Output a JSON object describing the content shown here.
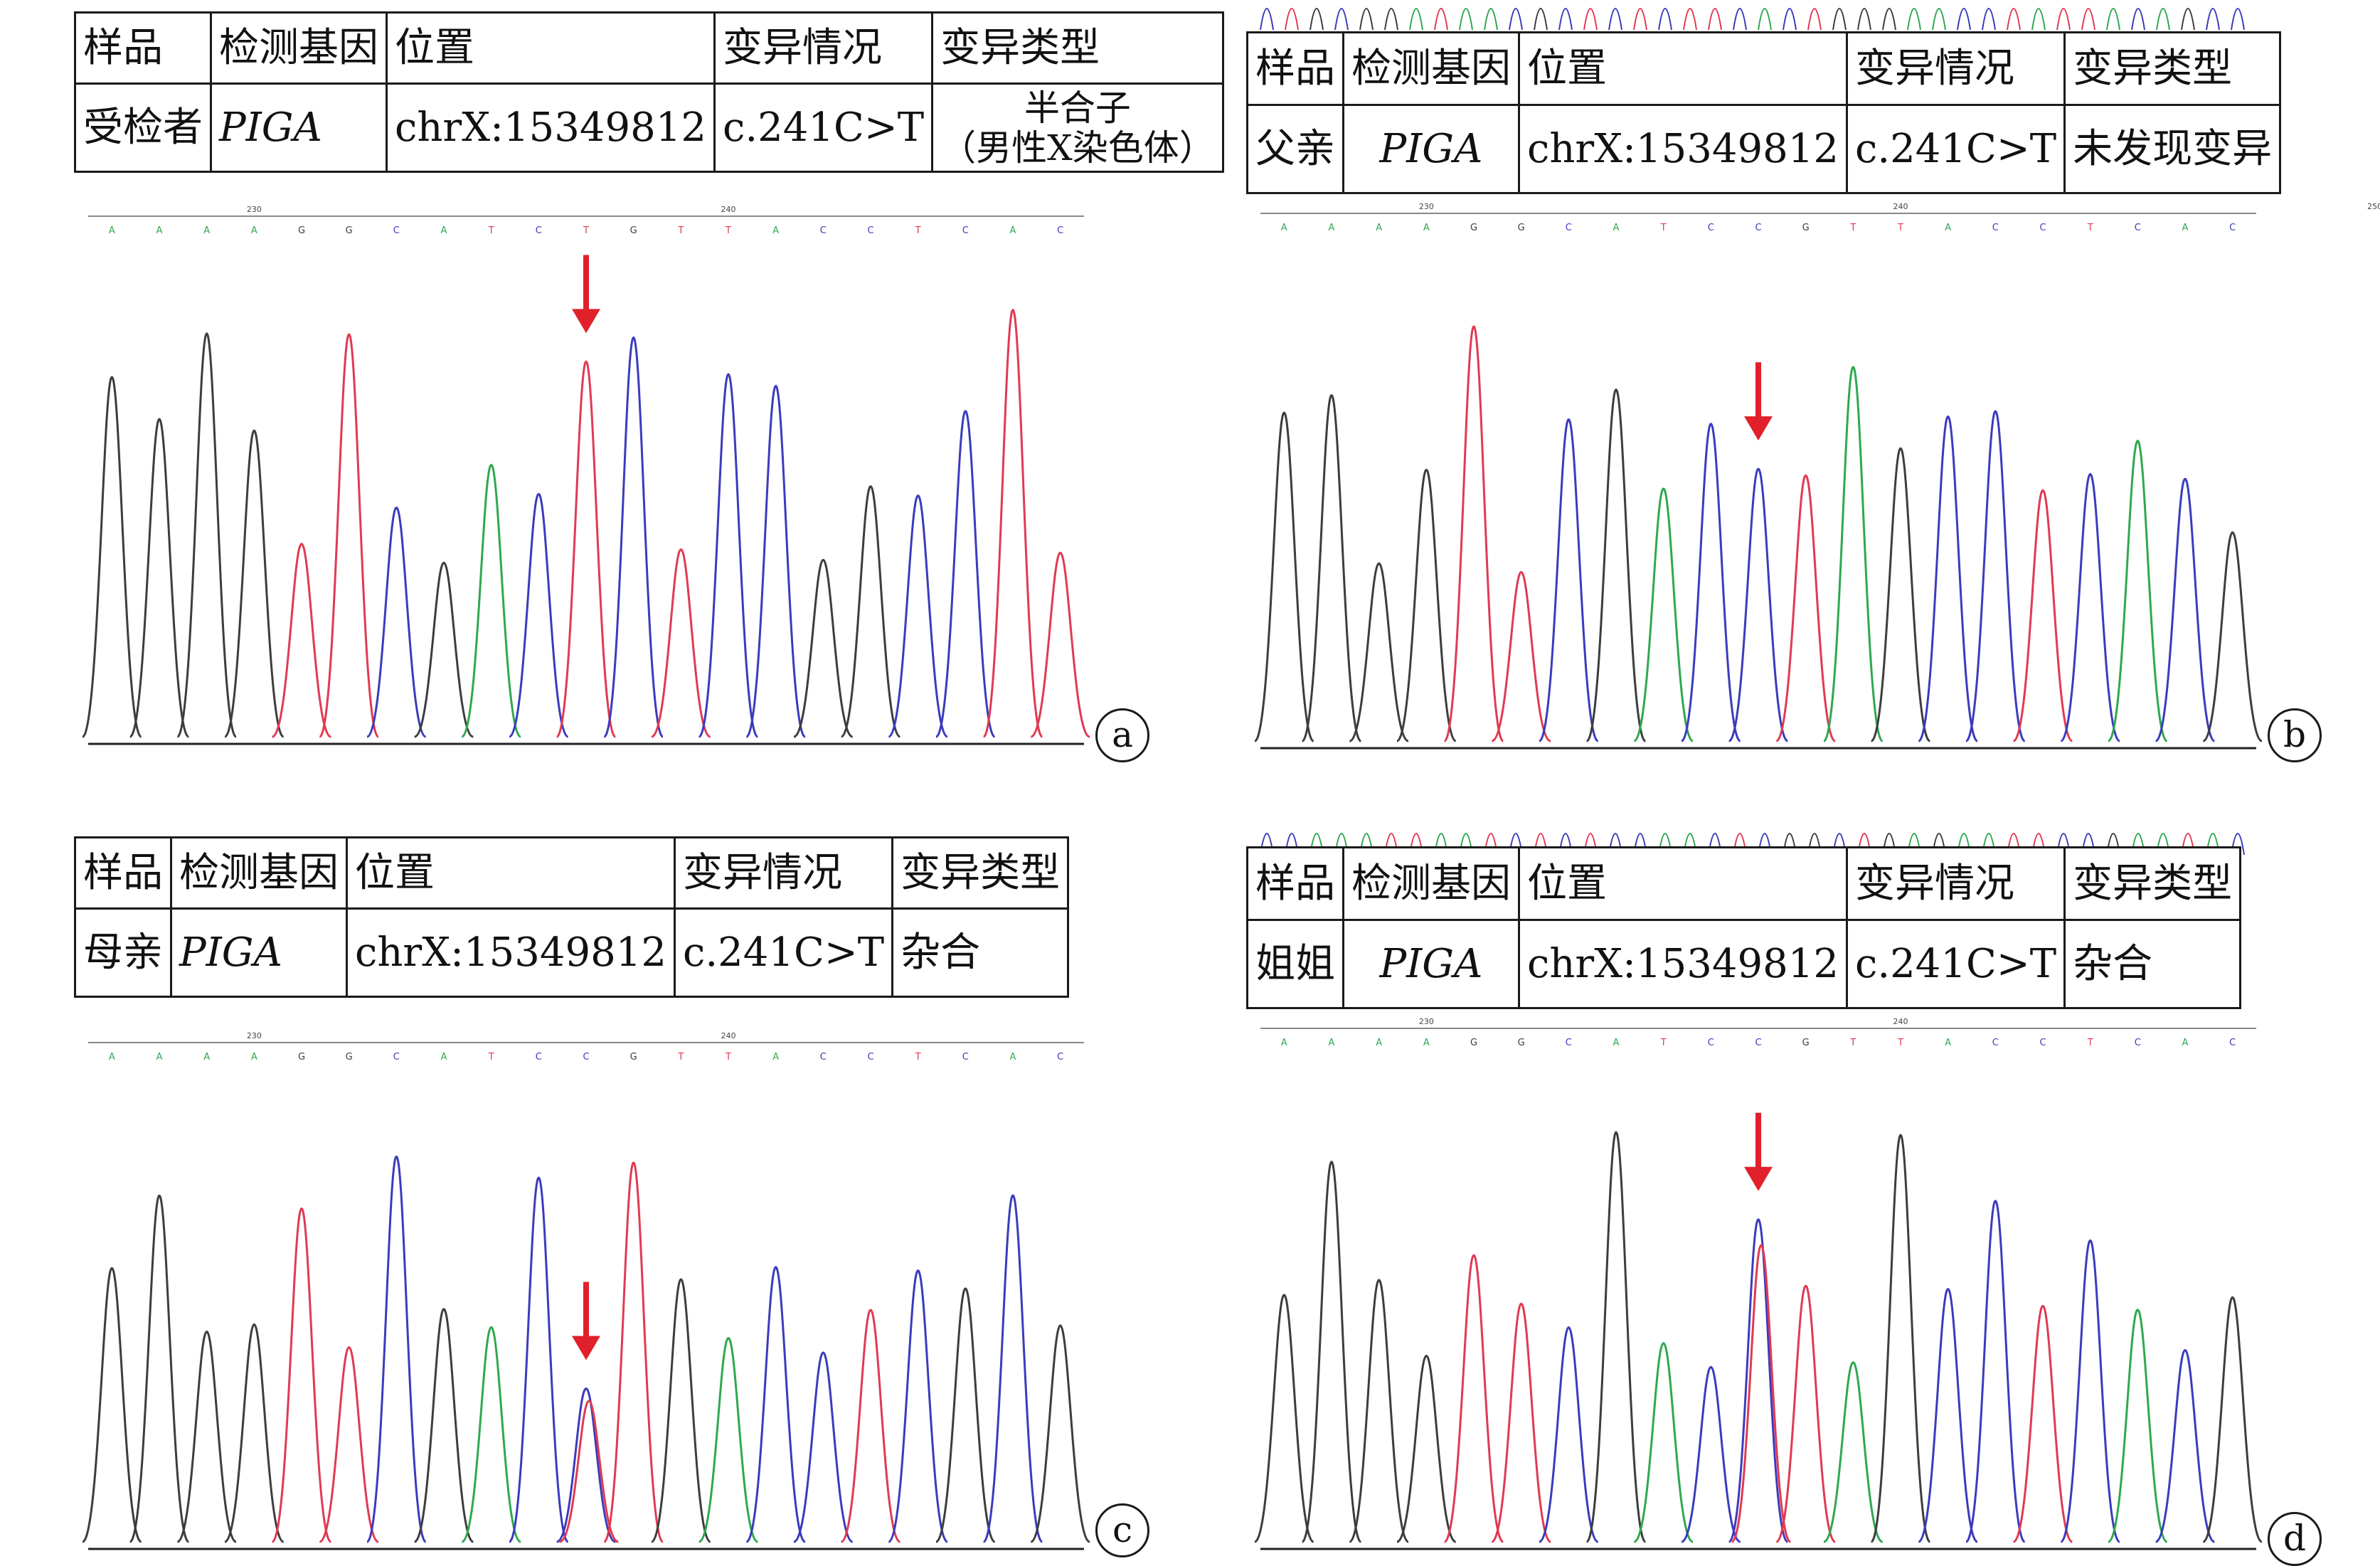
{
  "headers": {
    "sample": "样品",
    "gene": "检测基因",
    "position": "位置",
    "variation": "变异情况",
    "type": "变异类型"
  },
  "panels": [
    {
      "label": "a",
      "sample": "受检者",
      "gene": "PIGA",
      "position": "chrX:15349812",
      "variation": "c.241C>T",
      "type_line1": "半合子",
      "type_line2": "（男性X染色体）",
      "het": false,
      "mut_index": 10,
      "ruler_labels": [
        "230",
        "240"
      ],
      "bases": "AAAAGGCATCTGTTACCTCAC",
      "trace": [
        "G",
        "G",
        "G",
        "G",
        "T",
        "T",
        "C",
        "G",
        "A",
        "C",
        "T",
        "C",
        "T",
        "C",
        "C",
        "G",
        "G",
        "C",
        "C",
        "T",
        "T"
      ]
    },
    {
      "label": "b",
      "sample": "父亲",
      "gene": "PIGA",
      "position": "chrX:15349812",
      "variation": "c.241C>T",
      "type": "未发现变异",
      "het": false,
      "mut_index": 10,
      "ruler_labels": [
        "230",
        "240",
        "250"
      ],
      "bases": "AAAAGGCATCCGTTACCTCAC",
      "trace": [
        "G",
        "G",
        "G",
        "G",
        "T",
        "T",
        "C",
        "G",
        "A",
        "C",
        "C",
        "T",
        "A",
        "G",
        "C",
        "C",
        "T",
        "C",
        "A",
        "C",
        "G"
      ]
    },
    {
      "label": "c",
      "sample": "母亲",
      "gene": "PIGA",
      "position": "chrX:15349812",
      "variation": "c.241C>T",
      "type": "杂合",
      "het": true,
      "mut_index": 10,
      "ruler_labels": [
        "230",
        "240"
      ],
      "bases": "AAAAGGCATCCGTTACCTCAC",
      "trace": [
        "G",
        "G",
        "G",
        "G",
        "T",
        "T",
        "C",
        "G",
        "A",
        "C",
        "C",
        "T",
        "G",
        "A",
        "C",
        "C",
        "T",
        "C",
        "G",
        "C",
        "G"
      ]
    },
    {
      "label": "d",
      "sample": "姐姐",
      "gene": "PIGA",
      "position": "chrX:15349812",
      "variation": "c.241C>T",
      "type": "杂合",
      "het": true,
      "mut_index": 10,
      "ruler_labels": [
        "230",
        "240"
      ],
      "bases": "AAAAGGCATCCGTTACCTCAC",
      "trace": [
        "G",
        "G",
        "G",
        "G",
        "T",
        "T",
        "C",
        "G",
        "A",
        "C",
        "C",
        "T",
        "A",
        "G",
        "C",
        "C",
        "T",
        "C",
        "A",
        "C",
        "G"
      ]
    }
  ],
  "colors": {
    "A": "#2fa84f",
    "C": "#3b3bbd",
    "G": "#3d3d3d",
    "T": "#e03a52",
    "arrow": "#e0202a"
  }
}
